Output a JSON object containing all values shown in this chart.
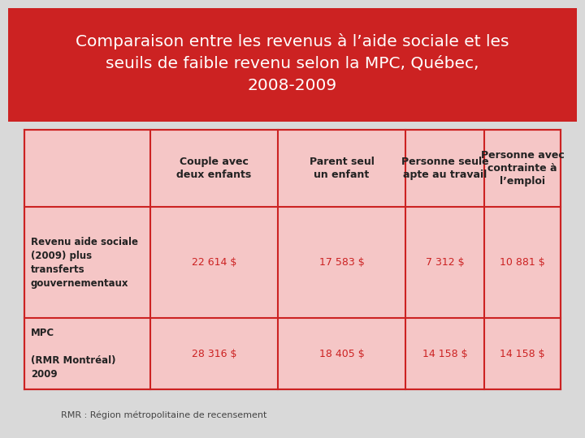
{
  "title_line1": "Comparaison entre les revenus à l’aide sociale et les",
  "title_line2": "seuils de faible revenu selon la MPC, Québec,",
  "title_line3": "2008-2009",
  "title_bg": "#cc2222",
  "title_text_color": "#ffffff",
  "table_bg": "#f5c6c6",
  "col_headers": [
    "Couple avec\ndeux enfants",
    "Parent seul\nun enfant",
    "Personne seule\napte au travail",
    "Personne avec\ncontrainte à\nl’emploi"
  ],
  "row1_label": "Revenu aide sociale\n(2009) plus\ntransferts\ngouvernementaux",
  "row1_values": [
    "22 614 $",
    "17 583 $",
    "7 312 $",
    "10 881 $"
  ],
  "row2_label": "MPC\n\n(RMR Montréal)\n2009",
  "row2_values": [
    "28 316 $",
    "18 405 $",
    "14 158 $",
    "14 158 $"
  ],
  "footnote": "RMR : Région métropolitaine de recensement",
  "outer_bg": "#d9d9d9",
  "border_color": "#cc2222",
  "cell_text_color": "#cc2222",
  "header_text_color": "#333333"
}
